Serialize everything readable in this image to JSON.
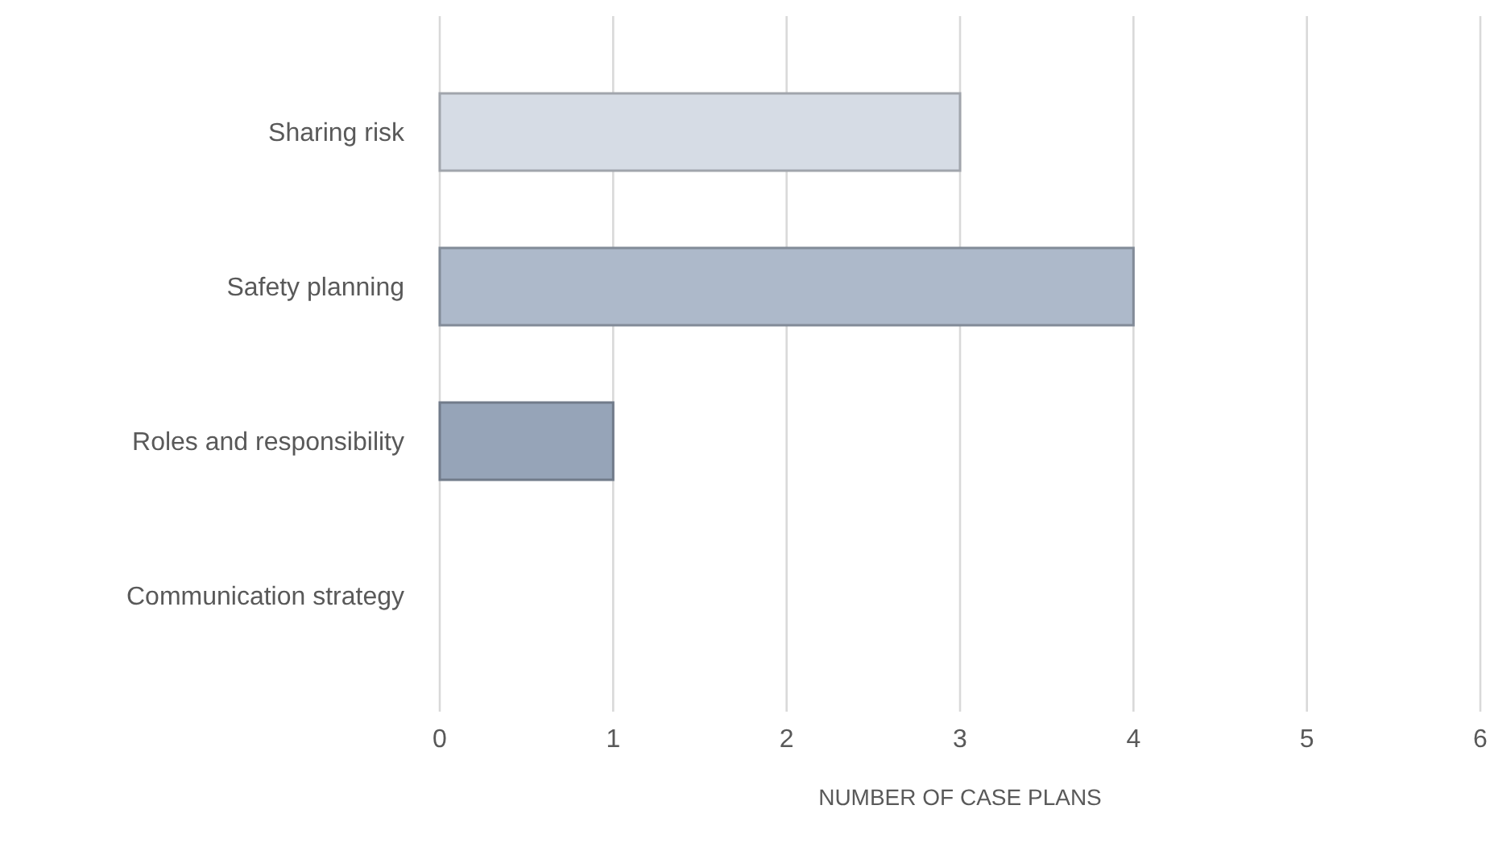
{
  "chart_data": {
    "type": "bar",
    "orientation": "horizontal",
    "xlabel": "NUMBER OF CASE PLANS",
    "categories": [
      "Sharing risk",
      "Safety planning",
      "Roles and responsibility",
      "Communication strategy"
    ],
    "values": [
      3,
      4,
      1,
      0
    ],
    "colors": [
      "#d6dce5",
      "#adb9ca",
      "#96a4b8",
      "#8497b0"
    ],
    "xlim": [
      0,
      6
    ],
    "xticks": [
      0,
      1,
      2,
      3,
      4,
      5,
      6
    ],
    "grid": "x"
  }
}
